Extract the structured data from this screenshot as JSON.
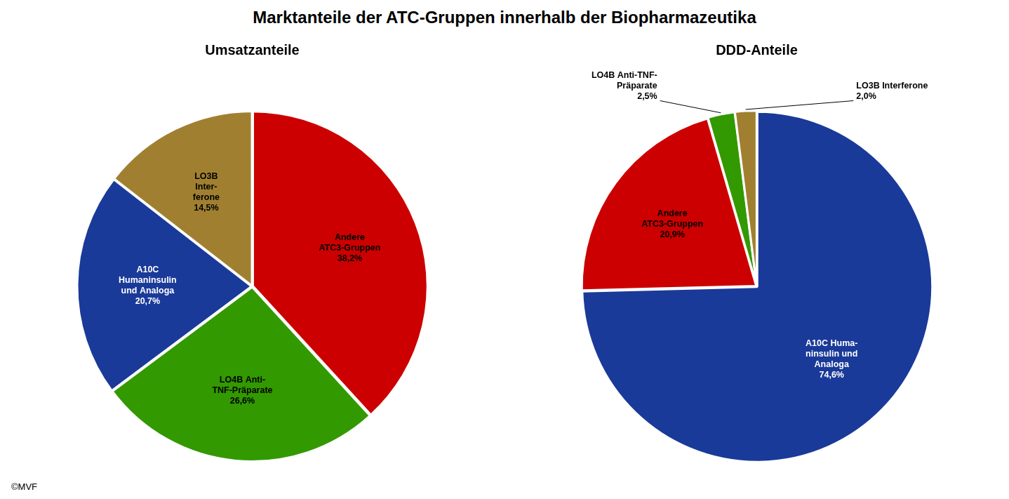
{
  "title": "Marktanteile der ATC-Gruppen innerhalb der Biopharmazeutika",
  "annotations": [
    "©MVF"
  ],
  "chart_data": [
    {
      "type": "pie",
      "title": "Umsatzanteile",
      "categories": [
        "Andere\nATC3-Gruppen",
        "LO4B Anti-\nTNF-Präparate",
        "A10C\nHumaninsulin\nund Analoga",
        "LO3B\nInter-\nferone"
      ],
      "values": [
        38.2,
        26.6,
        20.7,
        14.5
      ],
      "value_labels": [
        "38,2%",
        "26,6%",
        "20,7%",
        "14,5%"
      ],
      "colors": [
        "#cc0000",
        "#339900",
        "#1a3a99",
        "#a08030"
      ],
      "data_labels": true
    },
    {
      "type": "pie",
      "title": "DDD-Anteile",
      "categories": [
        "A10C Huma-\nninsulin und\nAnaloga",
        "Andere\nATC3-Gruppen",
        "LO4B Anti-TNF-\nPräparate",
        "LO3B Interferone"
      ],
      "values": [
        74.6,
        20.9,
        2.5,
        2.0
      ],
      "value_labels": [
        "74,6%",
        "20,9%",
        "2,5%",
        "2,0%"
      ],
      "colors": [
        "#1a3a99",
        "#cc0000",
        "#339900",
        "#a08030"
      ],
      "data_labels": true
    }
  ]
}
